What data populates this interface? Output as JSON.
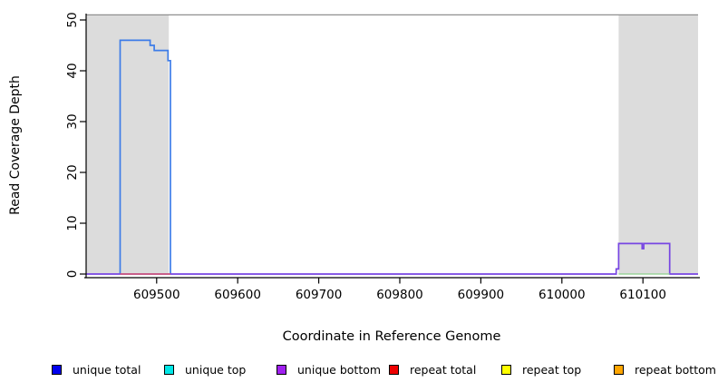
{
  "chart_data": {
    "type": "line",
    "title": "",
    "xlabel": "Coordinate in Reference Genome",
    "ylabel": "Read Coverage Depth",
    "xlim": [
      609413,
      610168
    ],
    "ylim": [
      0,
      51
    ],
    "grid": false,
    "background": "#ffffff",
    "xticks": [
      609500,
      609600,
      609700,
      609800,
      609900,
      610000,
      610100
    ],
    "yticks": [
      0,
      10,
      20,
      30,
      40,
      50
    ],
    "shaded_regions": [
      {
        "name": "left-gray-band",
        "x0": 609413,
        "x1": 609515,
        "color": "#dcdcdc"
      },
      {
        "name": "right-gray-band",
        "x0": 610070,
        "x1": 610168,
        "color": "#dcdcdc"
      }
    ],
    "series": [
      {
        "name": "max-coverage-line",
        "color": "#8f8f8f",
        "width": 1.3,
        "points": [
          [
            609413,
            51
          ],
          [
            610168,
            51
          ]
        ]
      },
      {
        "name": "unique total",
        "color": "#3d7ce8",
        "width": 1.7,
        "points": [
          [
            609455,
            0
          ],
          [
            609455,
            46
          ],
          [
            609492,
            46
          ],
          [
            609492,
            45
          ],
          [
            609497,
            45
          ],
          [
            609497,
            44
          ],
          [
            609514,
            44
          ],
          [
            609514,
            42
          ],
          [
            609517,
            42
          ],
          [
            609517,
            0
          ]
        ]
      },
      {
        "name": "unique bottom",
        "color": "#7746e2",
        "width": 1.7,
        "points": [
          [
            609413,
            0
          ],
          [
            610067,
            0
          ],
          [
            610067,
            1
          ],
          [
            610070,
            1
          ],
          [
            610070,
            6
          ],
          [
            610099,
            6
          ],
          [
            610099,
            5
          ],
          [
            610101,
            5
          ],
          [
            610101,
            6
          ],
          [
            610133,
            6
          ],
          [
            610133,
            0
          ],
          [
            610168,
            0
          ]
        ]
      },
      {
        "name": "repeat total",
        "color": "#e85555",
        "width": 1.3,
        "points": [
          [
            609455,
            0
          ],
          [
            609517,
            0
          ]
        ]
      },
      {
        "name": "zero-line-green",
        "color": "#8ccf8c",
        "width": 1.3,
        "points": [
          [
            610070,
            0
          ],
          [
            610133,
            0
          ]
        ]
      }
    ],
    "legend": {
      "position": "bottom",
      "entries": [
        {
          "label": "unique total",
          "color": "#0000ee"
        },
        {
          "label": "unique top",
          "color": "#00e6e6"
        },
        {
          "label": "unique bottom",
          "color": "#a020f0"
        },
        {
          "label": "repeat total",
          "color": "#ee0000"
        },
        {
          "label": "repeat top",
          "color": "#ffff00"
        },
        {
          "label": "repeat bottom",
          "color": "#ffa500"
        }
      ]
    }
  }
}
